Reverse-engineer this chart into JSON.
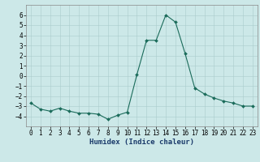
{
  "x": [
    0,
    1,
    2,
    3,
    4,
    5,
    6,
    7,
    8,
    9,
    10,
    11,
    12,
    13,
    14,
    15,
    16,
    17,
    18,
    19,
    20,
    21,
    22,
    23
  ],
  "y": [
    -2.7,
    -3.3,
    -3.5,
    -3.2,
    -3.5,
    -3.7,
    -3.7,
    -3.8,
    -4.3,
    -3.9,
    -3.6,
    0.1,
    3.5,
    3.5,
    6.0,
    5.3,
    2.2,
    -1.2,
    -1.8,
    -2.2,
    -2.5,
    -2.7,
    -3.0,
    -3.0
  ],
  "line_color": "#1a6b5a",
  "marker": "D",
  "marker_size": 2.0,
  "bg_color": "#cce8e8",
  "grid_color": "#aacccc",
  "xlabel": "Humidex (Indice chaleur)",
  "xlim": [
    -0.5,
    23.5
  ],
  "ylim": [
    -5,
    7
  ],
  "yticks": [
    -4,
    -3,
    -2,
    -1,
    0,
    1,
    2,
    3,
    4,
    5,
    6
  ],
  "xticks": [
    0,
    1,
    2,
    3,
    4,
    5,
    6,
    7,
    8,
    9,
    10,
    11,
    12,
    13,
    14,
    15,
    16,
    17,
    18,
    19,
    20,
    21,
    22,
    23
  ],
  "tick_fontsize": 5.5,
  "xlabel_fontsize": 6.5
}
